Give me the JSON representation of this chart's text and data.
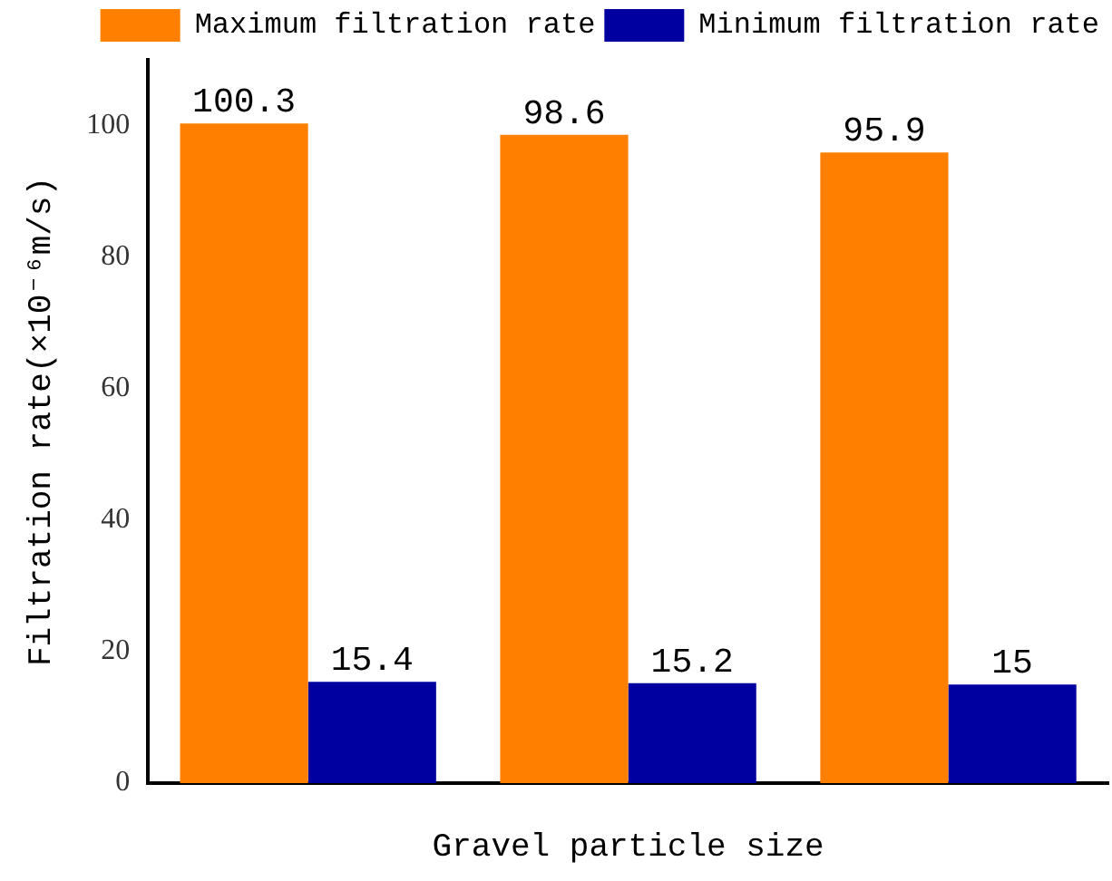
{
  "chart_data": {
    "type": "bar",
    "xlabel": "Gravel particle size",
    "ylabel": "Filtration rate(×10⁻⁶m/s)",
    "categories": [
      null,
      null,
      null
    ],
    "series": [
      {
        "name": "Maximum filtration rate",
        "color": "#ff8000",
        "values": [
          100.3,
          98.6,
          95.9
        ]
      },
      {
        "name": "Minimum filtration rate",
        "color": "#0000a0",
        "values": [
          15.4,
          15.2,
          15
        ]
      }
    ],
    "ylim": [
      0,
      110
    ],
    "yticks": [
      0,
      20,
      40,
      60,
      80,
      100
    ],
    "grid": false,
    "legend": "top right",
    "data_labels": true
  }
}
